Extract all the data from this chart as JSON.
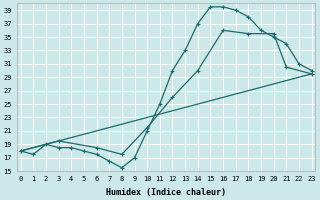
{
  "xlabel": "Humidex (Indice chaleur)",
  "bg_color": "#cce8e8",
  "grid_color": "#ffffff",
  "line_color": "#1a6b6b",
  "xlim": [
    0,
    23
  ],
  "ylim": [
    15,
    40
  ],
  "yticks": [
    15,
    17,
    19,
    21,
    23,
    25,
    27,
    29,
    31,
    33,
    35,
    37,
    39
  ],
  "xticks": [
    0,
    1,
    2,
    3,
    4,
    5,
    6,
    7,
    8,
    9,
    10,
    11,
    12,
    13,
    14,
    15,
    16,
    17,
    18,
    19,
    20,
    21,
    22,
    23
  ],
  "curve1_x": [
    0,
    1,
    2,
    3,
    4,
    5,
    6,
    7,
    8,
    9,
    10,
    11,
    12,
    13,
    14,
    15,
    16,
    17,
    18,
    19,
    20,
    21,
    22,
    23
  ],
  "curve1_y": [
    18,
    17.5,
    19,
    18.5,
    18.5,
    18,
    17.5,
    16.5,
    15.5,
    17,
    21,
    25,
    30,
    33,
    37,
    39.5,
    39.5,
    39,
    38,
    36,
    35,
    34,
    31,
    30
  ],
  "curve2_x": [
    0,
    3,
    6,
    8,
    10,
    12,
    14,
    16,
    18,
    20,
    21,
    23
  ],
  "curve2_y": [
    18,
    19.5,
    18.5,
    17.5,
    21.5,
    26,
    30,
    36,
    35.5,
    35.5,
    30.5,
    29.5
  ],
  "curve3_x": [
    0,
    23
  ],
  "curve3_y": [
    18,
    29.5
  ],
  "marker_size": 3.5,
  "line_width": 0.9,
  "tick_fontsize": 5,
  "xlabel_fontsize": 6
}
